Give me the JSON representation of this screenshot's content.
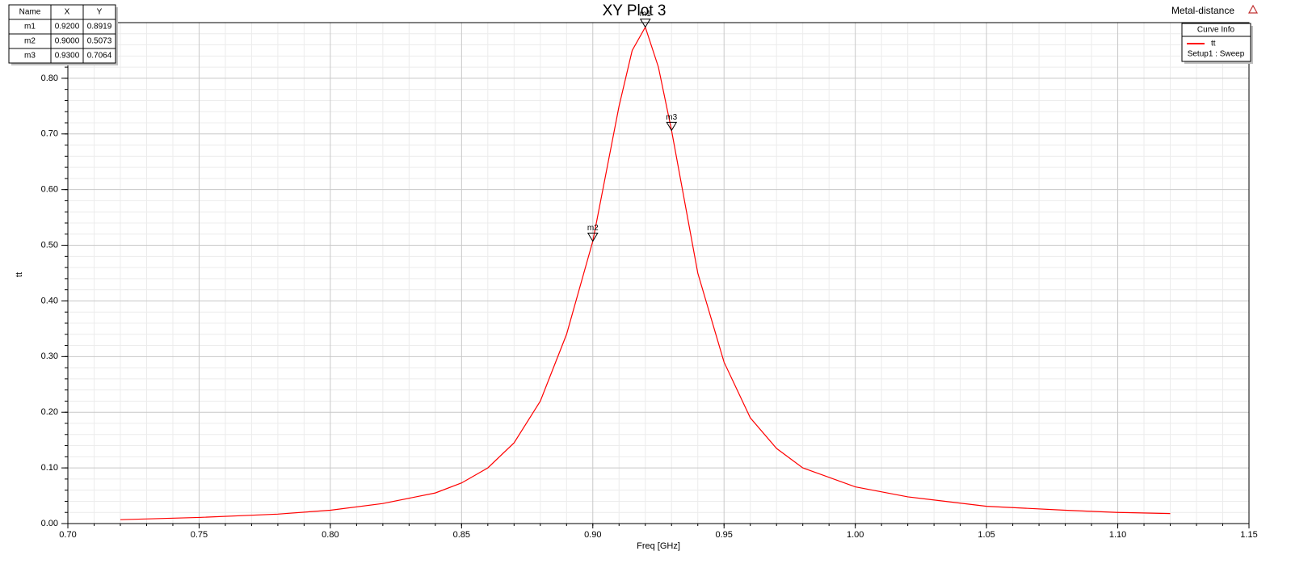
{
  "chart_data": {
    "type": "line",
    "title": "XY Plot 3",
    "corner_label": "Metal-distance",
    "x_label": "Freq [GHz]",
    "y_label": "tt",
    "legend_title": "Curve Info",
    "legend_subtitle": "Setup1 : Sweep",
    "grid": true,
    "x": [
      0.72,
      0.75,
      0.78,
      0.8,
      0.82,
      0.84,
      0.85,
      0.86,
      0.87,
      0.88,
      0.89,
      0.9,
      0.91,
      0.915,
      0.92,
      0.925,
      0.93,
      0.94,
      0.95,
      0.96,
      0.97,
      0.98,
      1.0,
      1.02,
      1.05,
      1.08,
      1.1,
      1.12
    ],
    "series": [
      {
        "name": "tt",
        "color": "#ff0000",
        "values": [
          0.007,
          0.011,
          0.017,
          0.024,
          0.036,
          0.055,
          0.073,
          0.1,
          0.145,
          0.22,
          0.34,
          0.5073,
          0.75,
          0.85,
          0.8919,
          0.82,
          0.7064,
          0.45,
          0.29,
          0.19,
          0.135,
          0.1,
          0.066,
          0.048,
          0.031,
          0.024,
          0.02,
          0.018
        ]
      }
    ],
    "xlim": [
      0.7,
      1.15
    ],
    "ylim": [
      0,
      0.9
    ],
    "xticks": [
      {
        "value": 0.7,
        "label": "0.70"
      },
      {
        "value": 0.75,
        "label": "0.75"
      },
      {
        "value": 0.8,
        "label": "0.80"
      },
      {
        "value": 0.85,
        "label": "0.85"
      },
      {
        "value": 0.9,
        "label": "0.90"
      },
      {
        "value": 0.95,
        "label": "0.95"
      },
      {
        "value": 1.0,
        "label": "1.00"
      },
      {
        "value": 1.05,
        "label": "1.05"
      },
      {
        "value": 1.1,
        "label": "1.10"
      },
      {
        "value": 1.15,
        "label": "1.15"
      }
    ],
    "yticks": [
      {
        "value": 0,
        "label": "0.00"
      },
      {
        "value": 0.1,
        "label": "0.10"
      },
      {
        "value": 0.2,
        "label": "0.20"
      },
      {
        "value": 0.3,
        "label": "0.30"
      },
      {
        "value": 0.4,
        "label": "0.40"
      },
      {
        "value": 0.5,
        "label": "0.50"
      },
      {
        "value": 0.6,
        "label": "0.60"
      },
      {
        "value": 0.7,
        "label": "0.70"
      },
      {
        "value": 0.8,
        "label": "0.80"
      }
    ],
    "marker_table_headers": [
      "Name",
      "X",
      "Y"
    ],
    "markers": {
      "names": [
        "m1",
        "m2",
        "m3"
      ],
      "x": [
        0.92,
        0.9,
        0.93
      ],
      "y": [
        0.8919,
        0.5073,
        0.7064
      ],
      "x_labels": [
        "0.9200",
        "0.9000",
        "0.9300"
      ],
      "y_labels": [
        "0.8919",
        "0.5073",
        "0.7064"
      ]
    }
  }
}
